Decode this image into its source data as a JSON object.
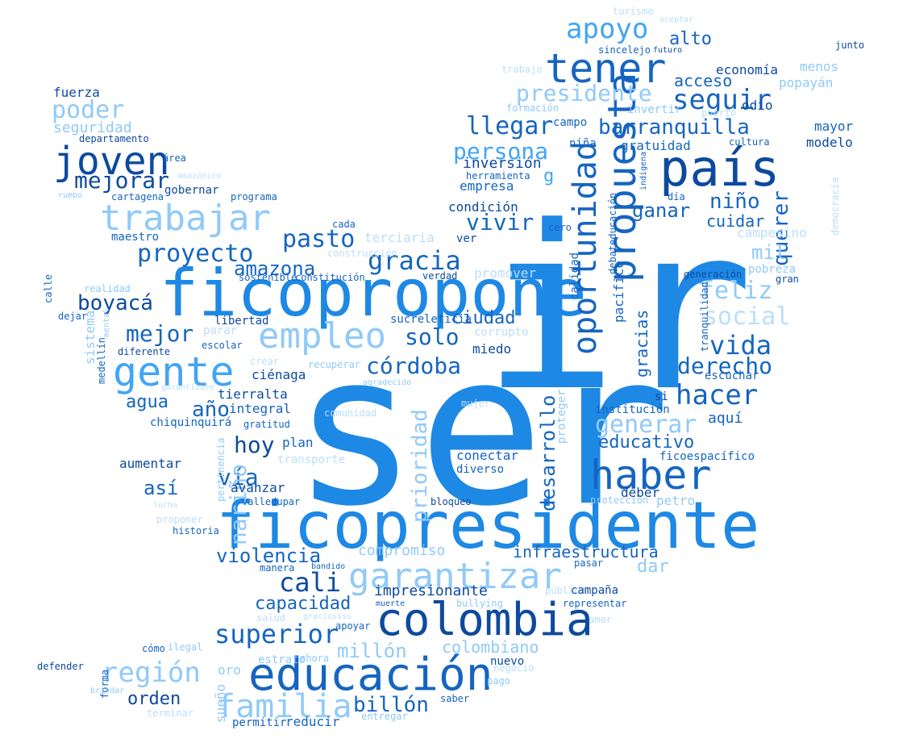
{
  "colors": {
    "dark": "#0d4a9e",
    "mid": "#1565c0",
    "bright": "#1e88e5",
    "sky": "#42a5f5",
    "light": "#90caf9",
    "pale": "#bbdefb"
  },
  "words": [
    {
      "t": "ser",
      "c": "bright"
    },
    {
      "t": "ir",
      "c": "bright"
    },
    {
      "t": "ficopresidente",
      "c": "bright"
    },
    {
      "t": "ficopropone",
      "c": "bright"
    },
    {
      "t": "educación",
      "c": "mid"
    },
    {
      "t": "colombia",
      "c": "dark"
    },
    {
      "t": "país",
      "c": "dark"
    },
    {
      "t": "haber",
      "c": "mid"
    },
    {
      "t": "tener",
      "c": "mid"
    },
    {
      "t": "gente",
      "c": "sky"
    },
    {
      "t": "empleo",
      "c": "light"
    },
    {
      "t": "garantizar",
      "c": "light"
    },
    {
      "t": "trabajar",
      "c": "light"
    },
    {
      "t": "joven",
      "c": "dark"
    },
    {
      "t": "propuesta",
      "c": "mid"
    },
    {
      "t": "oportunidad",
      "c": "mid"
    },
    {
      "t": "apoyo",
      "c": "sky"
    },
    {
      "t": "seguir",
      "c": "mid"
    },
    {
      "t": "presidente",
      "c": "light"
    },
    {
      "t": "llegar",
      "c": "mid"
    },
    {
      "t": "persona",
      "c": "sky"
    },
    {
      "t": "barranquilla",
      "c": "mid"
    },
    {
      "t": "gracia",
      "c": "mid"
    },
    {
      "t": "hacer",
      "c": "mid"
    },
    {
      "t": "vida",
      "c": "mid"
    },
    {
      "t": "familia",
      "c": "light"
    },
    {
      "t": "superior",
      "c": "mid"
    },
    {
      "t": "región",
      "c": "light"
    },
    {
      "t": "cali",
      "c": "dark"
    },
    {
      "t": "mejorar",
      "c": "dark"
    },
    {
      "t": "poder",
      "c": "light"
    },
    {
      "t": "proyecto",
      "c": "mid"
    },
    {
      "t": "pasto",
      "c": "mid"
    },
    {
      "t": "generar",
      "c": "light"
    },
    {
      "t": "feliz",
      "c": "light"
    },
    {
      "t": "social",
      "c": "pale"
    },
    {
      "t": "derecho",
      "c": "mid"
    },
    {
      "t": "córdoba",
      "c": "mid"
    },
    {
      "t": "solo",
      "c": "mid"
    },
    {
      "t": "mejor",
      "c": "mid"
    },
    {
      "t": "boyacá",
      "c": "dark"
    },
    {
      "t": "amazona",
      "c": "mid"
    },
    {
      "t": "vía",
      "c": "mid"
    },
    {
      "t": "año",
      "c": "mid"
    },
    {
      "t": "hoy",
      "c": "dark"
    },
    {
      "t": "agua",
      "c": "mid"
    },
    {
      "t": "vivir",
      "c": "mid"
    },
    {
      "t": "niño",
      "c": "mid"
    },
    {
      "t": "ganar",
      "c": "mid"
    },
    {
      "t": "querer",
      "c": "mid"
    },
    {
      "t": "violencia",
      "c": "mid"
    },
    {
      "t": "capacidad",
      "c": "mid"
    },
    {
      "t": "billón",
      "c": "mid"
    },
    {
      "t": "millón",
      "c": "light"
    },
    {
      "t": "orden",
      "c": "dark"
    },
    {
      "t": "infraestructura",
      "c": "mid"
    },
    {
      "t": "educativo",
      "c": "mid"
    },
    {
      "t": "prioridad",
      "c": "light"
    },
    {
      "t": "nariño",
      "c": "light"
    },
    {
      "t": "desarrollo",
      "c": "mid"
    },
    {
      "t": "alto",
      "c": "mid"
    },
    {
      "t": "acceso",
      "c": "mid"
    },
    {
      "t": "mil",
      "c": "light"
    },
    {
      "t": "ciudad",
      "c": "mid"
    },
    {
      "t": "así",
      "c": "mid"
    },
    {
      "t": "colombiano",
      "c": "light"
    },
    {
      "t": "compromiso",
      "c": "light"
    },
    {
      "t": "impresionante",
      "c": "dark"
    },
    {
      "t": "dar",
      "c": "light"
    },
    {
      "t": "gratuidad",
      "c": "mid"
    },
    {
      "t": "cuidar",
      "c": "mid"
    },
    {
      "t": "inversión",
      "c": "dark"
    },
    {
      "t": "empresa",
      "c": "mid"
    },
    {
      "t": "condición",
      "c": "dark"
    },
    {
      "t": "gracias",
      "c": "mid"
    },
    {
      "t": "fuerza",
      "c": "dark"
    },
    {
      "t": "seguridad",
      "c": "light"
    },
    {
      "t": "departamento",
      "c": "dark"
    },
    {
      "t": "área",
      "c": "mid"
    },
    {
      "t": "gobernar",
      "c": "dark"
    },
    {
      "t": "programa",
      "c": "mid"
    },
    {
      "t": "cartagena",
      "c": "mid"
    },
    {
      "t": "amazónico",
      "c": "pale"
    },
    {
      "t": "rumbo",
      "c": "light"
    },
    {
      "t": "maestro",
      "c": "mid"
    },
    {
      "t": "terciaria",
      "c": "pale"
    },
    {
      "t": "construcción",
      "c": "pale"
    },
    {
      "t": "constitución",
      "c": "mid"
    },
    {
      "t": "sostenible",
      "c": "mid"
    },
    {
      "t": "calle",
      "c": "mid"
    },
    {
      "t": "realidad",
      "c": "light"
    },
    {
      "t": "dejar",
      "c": "mid"
    },
    {
      "t": "libertad",
      "c": "dark"
    },
    {
      "t": "sistema",
      "c": "light"
    },
    {
      "t": "medellín",
      "c": "mid"
    },
    {
      "t": "mental",
      "c": "light"
    },
    {
      "t": "diferente",
      "c": "dark"
    },
    {
      "t": "parar",
      "c": "pale"
    },
    {
      "t": "escolar",
      "c": "mid"
    },
    {
      "t": "crear",
      "c": "pale"
    },
    {
      "t": "recuperar",
      "c": "light"
    },
    {
      "t": "ciénaga",
      "c": "dark"
    },
    {
      "t": "tierralta",
      "c": "dark"
    },
    {
      "t": "garantizaré",
      "c": "pale"
    },
    {
      "t": "integral",
      "c": "mid"
    },
    {
      "t": "chiquinquirá",
      "c": "mid"
    },
    {
      "t": "gratitud",
      "c": "mid"
    },
    {
      "t": "plan",
      "c": "mid"
    },
    {
      "t": "pertinencia",
      "c": "light"
    },
    {
      "t": "aumentar",
      "c": "dark"
    },
    {
      "t": "avanzar",
      "c": "dark"
    },
    {
      "t": "transporte",
      "c": "pale"
    },
    {
      "t": "lucha",
      "c": "pale"
    },
    {
      "t": "proponer",
      "c": "pale"
    },
    {
      "t": "valledupar",
      "c": "mid"
    },
    {
      "t": "historia",
      "c": "mid"
    },
    {
      "t": "manera",
      "c": "mid"
    },
    {
      "t": "bandido",
      "c": "mid"
    },
    {
      "t": "muerte",
      "c": "mid"
    },
    {
      "t": "salud",
      "c": "pale"
    },
    {
      "t": "graciassss",
      "c": "pale"
    },
    {
      "t": "apoyar",
      "c": "mid"
    },
    {
      "t": "estrato",
      "c": "light"
    },
    {
      "t": "ahora",
      "c": "light"
    },
    {
      "t": "cómo",
      "c": "mid"
    },
    {
      "t": "ilegal",
      "c": "light"
    },
    {
      "t": "defender",
      "c": "dark"
    },
    {
      "t": "forma",
      "c": "mid"
    },
    {
      "t": "brindar",
      "c": "light"
    },
    {
      "t": "oro",
      "c": "light"
    },
    {
      "t": "sueño",
      "c": "light"
    },
    {
      "t": "terminar",
      "c": "pale"
    },
    {
      "t": "permitir",
      "c": "mid"
    },
    {
      "t": "reducir",
      "c": "mid"
    },
    {
      "t": "entregar",
      "c": "light"
    },
    {
      "t": "saber",
      "c": "mid"
    },
    {
      "t": "pago",
      "c": "light"
    },
    {
      "t": "negocio",
      "c": "pale"
    },
    {
      "t": "nuevo",
      "c": "dark"
    },
    {
      "t": "amar",
      "c": "pale"
    },
    {
      "t": "bullying",
      "c": "light"
    },
    {
      "t": "representar",
      "c": "mid"
    },
    {
      "t": "público",
      "c": "pale"
    },
    {
      "t": "campaña",
      "c": "dark"
    },
    {
      "t": "pasar",
      "c": "mid"
    },
    {
      "t": "conectar",
      "c": "mid"
    },
    {
      "t": "diverso",
      "c": "mid"
    },
    {
      "t": "comunidad",
      "c": "pale"
    },
    {
      "t": "mujer",
      "c": "pale"
    },
    {
      "t": "agradecido",
      "c": "light"
    },
    {
      "t": "proteger",
      "c": "light"
    },
    {
      "t": "bloqueo",
      "c": "dark"
    },
    {
      "t": "protección",
      "c": "light"
    },
    {
      "t": "deber",
      "c": "dark"
    },
    {
      "t": "petro",
      "c": "light"
    },
    {
      "t": "ficoespacífico",
      "c": "mid"
    },
    {
      "t": "institución",
      "c": "mid"
    },
    {
      "t": "aquí",
      "c": "mid"
    },
    {
      "t": "si",
      "c": "dark"
    },
    {
      "t": "escuchar",
      "c": "mid"
    },
    {
      "t": "tranquilidad",
      "c": "mid"
    },
    {
      "t": "calidad",
      "c": "mid"
    },
    {
      "t": "pacífico",
      "c": "mid"
    },
    {
      "t": "debateducación",
      "c": "mid"
    },
    {
      "t": "sucre",
      "c": "mid"
    },
    {
      "t": "corrupto",
      "c": "pale"
    },
    {
      "t": "miedo",
      "c": "dark"
    },
    {
      "t": "leticia",
      "c": "mid"
    },
    {
      "t": "verdad",
      "c": "dark"
    },
    {
      "t": "promover",
      "c": "pale"
    },
    {
      "t": "ver",
      "c": "dark"
    },
    {
      "t": "cada",
      "c": "mid"
    },
    {
      "t": "cero",
      "c": "mid"
    },
    {
      "t": "campesino",
      "c": "pale"
    },
    {
      "t": "pobreza",
      "c": "light"
    },
    {
      "t": "generación",
      "c": "dark"
    },
    {
      "t": "gran",
      "c": "dark"
    },
    {
      "t": "democracia",
      "c": "pale"
    },
    {
      "t": "día",
      "c": "mid"
    },
    {
      "t": "indígena",
      "c": "mid"
    },
    {
      "t": "herramienta",
      "c": "mid"
    },
    {
      "t": "niña",
      "c": "mid"
    },
    {
      "t": "cultura",
      "c": "mid"
    },
    {
      "t": "modelo",
      "c": "dark"
    },
    {
      "t": "mayor",
      "c": "mid"
    },
    {
      "t": "odio",
      "c": "dark"
    },
    {
      "t": "formación",
      "c": "light"
    },
    {
      "t": "campo",
      "c": "mid"
    },
    {
      "t": "invertir",
      "c": "light"
    },
    {
      "t": "puerto",
      "c": "pale"
    },
    {
      "t": "popayán",
      "c": "light"
    },
    {
      "t": "menos",
      "c": "light"
    },
    {
      "t": "economía",
      "c": "dark"
    },
    {
      "t": "trabajo",
      "c": "pale"
    },
    {
      "t": "sincelejo",
      "c": "mid"
    },
    {
      "t": "futuro",
      "c": "dark"
    },
    {
      "t": "turismo",
      "c": "pale"
    },
    {
      "t": "aceptar",
      "c": "pale"
    },
    {
      "t": "junto",
      "c": "dark"
    },
    {
      "t": "g",
      "c": "sky"
    }
  ]
}
